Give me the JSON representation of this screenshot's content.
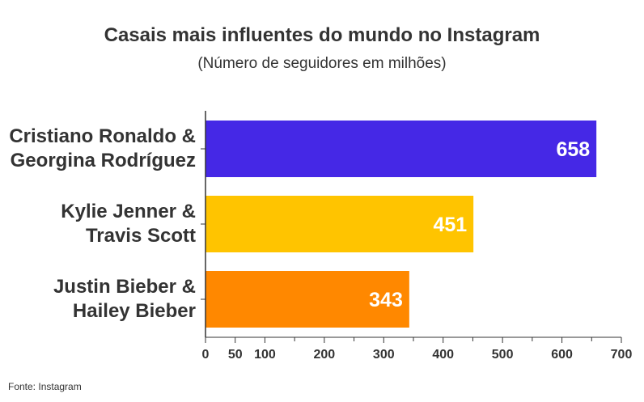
{
  "title": "Casais mais influentes do mundo no Instagram",
  "subtitle": "(Número de seguidores em milhões)",
  "source": "Fonte: Instagram",
  "chart_data": {
    "type": "bar",
    "orientation": "horizontal",
    "title": "Casais mais influentes do mundo no Instagram",
    "subtitle": "(Número de seguidores em milhões)",
    "categories": [
      [
        "Cristiano Ronaldo &",
        "Georgina Rodríguez"
      ],
      [
        "Kylie Jenner &",
        "Travis Scott"
      ],
      [
        "Justin Bieber &",
        "Hailey Bieber"
      ]
    ],
    "values": [
      658,
      451,
      343
    ],
    "data_labels": [
      "658",
      "451",
      "343"
    ],
    "colors": [
      "#4528e6",
      "#ffc400",
      "#ff8800"
    ],
    "xlim": [
      0,
      700
    ],
    "xticks": [
      0,
      50,
      100,
      200,
      300,
      400,
      500,
      600,
      700
    ],
    "minor_ticks": [
      150,
      250,
      350,
      450,
      550,
      650
    ],
    "grid": false,
    "legend": "none"
  }
}
